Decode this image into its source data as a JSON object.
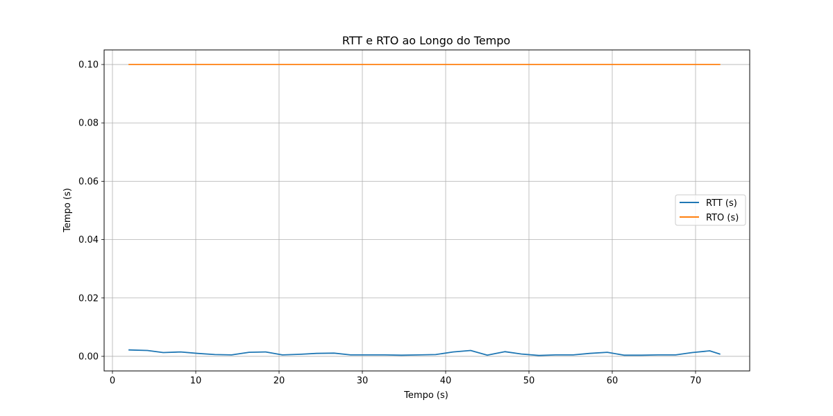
{
  "chart_data": {
    "type": "line",
    "title": "RTT e RTO ao Longo do Tempo",
    "xlabel": "Tempo (s)",
    "ylabel": "Tempo (s)",
    "xlim": [
      -1,
      76.5
    ],
    "ylim": [
      -0.005,
      0.105
    ],
    "xticks": [
      0,
      10,
      20,
      30,
      40,
      50,
      60,
      70
    ],
    "yticks": [
      0.0,
      0.02,
      0.04,
      0.06,
      0.08,
      0.1
    ],
    "xtick_labels": [
      "0",
      "10",
      "20",
      "30",
      "40",
      "50",
      "60",
      "70"
    ],
    "ytick_labels": [
      "0.00",
      "0.02",
      "0.04",
      "0.06",
      "0.08",
      "0.10"
    ],
    "grid": true,
    "legend_position": "center-right",
    "series": [
      {
        "name": "RTT (s)",
        "color": "#1f77b4",
        "x": [
          2.0,
          4.2,
          6.1,
          8.2,
          10.2,
          12.3,
          14.3,
          16.4,
          18.4,
          20.4,
          22.5,
          24.5,
          26.6,
          28.6,
          30.6,
          32.7,
          34.7,
          36.8,
          38.8,
          40.9,
          43.0,
          45.0,
          47.1,
          49.1,
          51.2,
          53.2,
          55.3,
          57.3,
          59.4,
          61.4,
          63.5,
          65.5,
          67.6,
          69.6,
          71.7,
          72.9
        ],
        "y": [
          0.0022,
          0.002,
          0.0013,
          0.0015,
          0.001,
          0.0006,
          0.0005,
          0.0014,
          0.0015,
          0.0005,
          0.0007,
          0.001,
          0.0011,
          0.0005,
          0.0005,
          0.0005,
          0.0004,
          0.0005,
          0.0006,
          0.0015,
          0.002,
          0.0004,
          0.0016,
          0.0008,
          0.0003,
          0.0005,
          0.0005,
          0.001,
          0.0014,
          0.0004,
          0.0004,
          0.0005,
          0.0005,
          0.0013,
          0.0019,
          0.0008
        ]
      },
      {
        "name": "RTO (s)",
        "color": "#ff7f0e",
        "x": [
          2.0,
          72.9
        ],
        "y": [
          0.1,
          0.1
        ]
      }
    ]
  }
}
